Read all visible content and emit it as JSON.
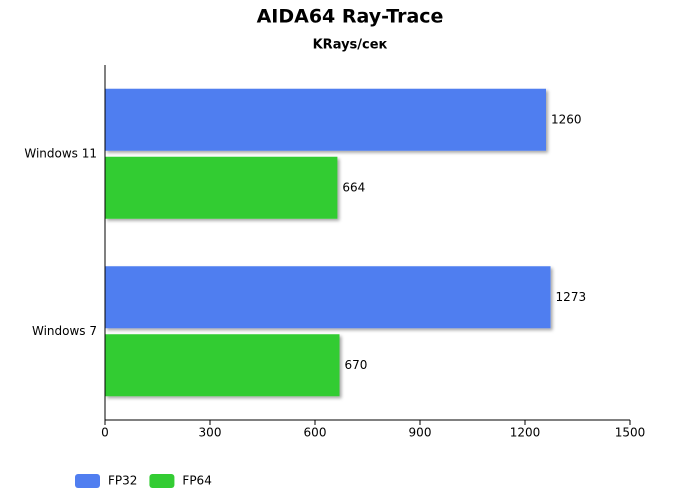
{
  "chart_data": {
    "type": "bar",
    "orientation": "horizontal",
    "title": "AIDA64 Ray-Trace",
    "subtitle": "KRays/сек",
    "categories": [
      "Windows 11",
      "Windows 7"
    ],
    "series": [
      {
        "name": "FP32",
        "color": "#507ef0",
        "values": [
          1260,
          1273
        ]
      },
      {
        "name": "FP64",
        "color": "#33cc33",
        "values": [
          664,
          670
        ]
      }
    ],
    "xlim": [
      0,
      1500
    ],
    "xticks": [
      0,
      300,
      600,
      900,
      1200,
      1500
    ],
    "grid": false,
    "legend": "bottom-left"
  }
}
